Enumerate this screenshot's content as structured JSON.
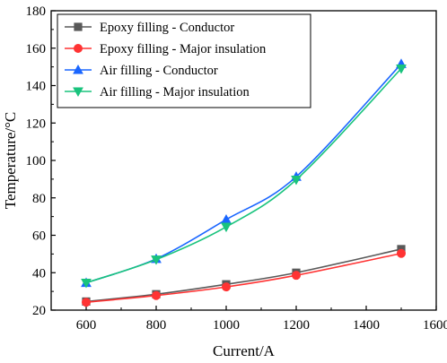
{
  "chart_data": {
    "type": "line",
    "title": "",
    "xlabel": "Current/A",
    "ylabel": "Temperature/°C",
    "xlim": [
      500,
      1600
    ],
    "ylim": [
      20,
      180
    ],
    "x_ticks": [
      600,
      800,
      1000,
      1200,
      1400,
      1600
    ],
    "y_ticks": [
      20,
      40,
      60,
      80,
      100,
      120,
      140,
      160,
      180
    ],
    "grid": false,
    "legend_position": "top-left",
    "x": [
      600,
      800,
      1000,
      1200,
      1500
    ],
    "series": [
      {
        "name": "Epoxy filling - Conductor",
        "color": "#595959",
        "marker": "square",
        "values": [
          24.6,
          28.5,
          33.8,
          40.0,
          52.6
        ]
      },
      {
        "name": "Epoxy filling - Major insulation",
        "color": "#ff3333",
        "marker": "circle",
        "values": [
          24.2,
          27.8,
          32.4,
          38.6,
          50.3
        ]
      },
      {
        "name": "Air filling - Conductor",
        "color": "#1a66ff",
        "marker": "triangle-up",
        "values": [
          34.6,
          47.4,
          68.4,
          91.3,
          151.6
        ]
      },
      {
        "name": "Air filling - Major insulation",
        "color": "#19c37d",
        "marker": "triangle-down",
        "values": [
          34.6,
          47.0,
          64.5,
          89.7,
          149.1
        ]
      }
    ]
  }
}
